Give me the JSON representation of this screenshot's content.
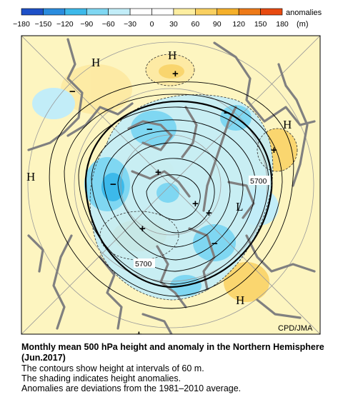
{
  "legend": {
    "ticks": [
      "−180",
      "−150",
      "−120",
      "−90",
      "−60",
      "−30",
      "0",
      "30",
      "60",
      "90",
      "120",
      "150",
      "180"
    ],
    "colors": [
      "#1e50c8",
      "#2a8cde",
      "#3cb9ea",
      "#7fd7f2",
      "#c2edf8",
      "#ffffff",
      "#ffffff",
      "#fdeea0",
      "#f9d060",
      "#f5b02a",
      "#ee7a18",
      "#e84a10"
    ],
    "unit_label": "anomalies",
    "unit": "(m)"
  },
  "map": {
    "background_color": "#fdf5c0",
    "highs": [
      "H",
      "H",
      "H",
      "H",
      "H"
    ],
    "lows": [
      "L"
    ],
    "contour_labels": [
      "5700",
      "5700"
    ],
    "plus_signs": [
      "+",
      "+",
      "+",
      "+",
      "+",
      "+",
      "+"
    ],
    "minus_signs": [
      "−",
      "−",
      "−",
      "−",
      "−"
    ],
    "credit": "CPD/JMA"
  },
  "caption": {
    "title": "Monthly mean 500 hPa height and anomaly in the Northern Hemisphere (Jun.2017)",
    "lines": [
      "The contours show height at intervals of 60 m.",
      "The shading indicates height anomalies.",
      "Anomalies are deviations from the 1981–2010 average."
    ]
  }
}
